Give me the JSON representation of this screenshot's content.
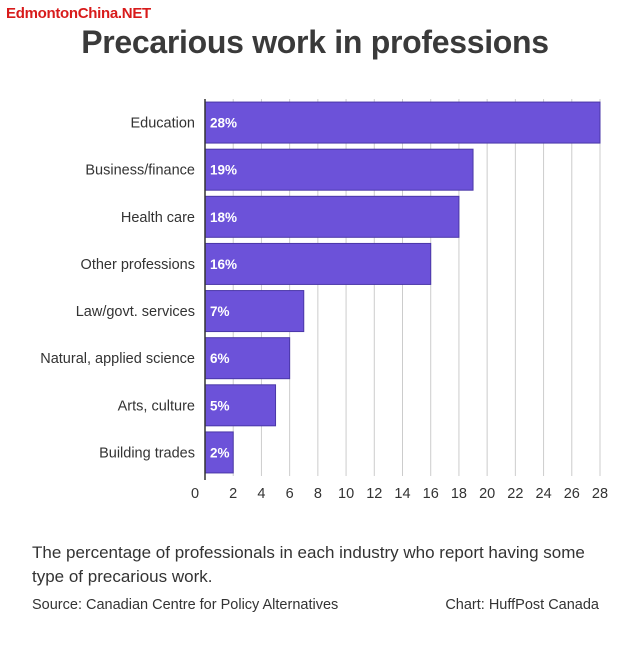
{
  "watermark": "EdmontonChina.NET",
  "caption": "The percentage of professionals in each industry who report having some type of precarious work.",
  "source": "Source: Canadian Centre for Policy Alternatives",
  "credit": "Chart: HuffPost Canada",
  "colors": {
    "bar": "#6c52d9",
    "bar_stroke": "#4a37a8",
    "grid": "#cccccc",
    "axis": "#333333"
  },
  "chart_data": {
    "type": "bar",
    "orientation": "horizontal",
    "title": "Precarious work in professions",
    "categories": [
      "Education",
      "Business/finance",
      "Health care",
      "Other professions",
      "Law/govt. services",
      "Natural, applied science",
      "Arts, culture",
      "Building trades"
    ],
    "values": [
      28,
      19,
      18,
      16,
      7,
      6,
      5,
      2
    ],
    "data_labels": [
      "28%",
      "19%",
      "18%",
      "16%",
      "7%",
      "6%",
      "5%",
      "2%"
    ],
    "xlim": [
      0,
      28
    ],
    "xticks": [
      0,
      2,
      4,
      6,
      8,
      10,
      12,
      14,
      16,
      18,
      20,
      22,
      24,
      26,
      28
    ],
    "grid": true
  }
}
